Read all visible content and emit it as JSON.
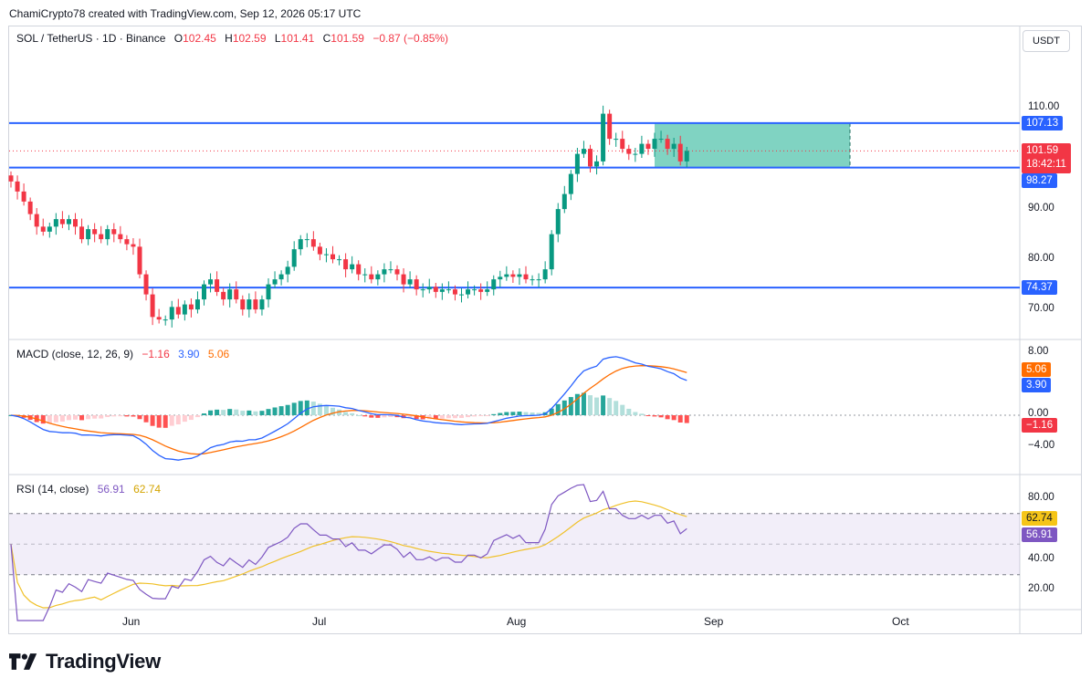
{
  "header": {
    "credit": "ChamiCrypto78 created with TradingView.com, Sep 12, 2026 05:17 UTC"
  },
  "main_legend": {
    "symbol": "SOL / TetherUS · 1D · Binance",
    "open_label": "O",
    "open": "102.45",
    "high_label": "H",
    "high": "102.59",
    "low_label": "L",
    "low": "101.41",
    "close_label": "C",
    "close": "101.59",
    "change": "−0.87 (−0.85%)"
  },
  "unit_button": "USDT",
  "price_tags": {
    "resistance": "107.13",
    "last_price": "101.59",
    "countdown": "18:42:11",
    "support": "98.27",
    "lower_support": "74.37"
  },
  "macd_legend": {
    "name": "MACD (close, 12, 26, 9)",
    "histogram": "−1.16",
    "macd": "3.90",
    "signal": "5.06"
  },
  "rsi_legend": {
    "name": "RSI (14, close)",
    "rsi": "56.91",
    "rsi_ma": "62.74"
  },
  "colors": {
    "up": "#089981",
    "down": "#f23645",
    "level_line": "#2962ff",
    "macd_line": "#2962ff",
    "signal_line": "#ff6d00",
    "rsi_line": "#7e57c2",
    "rsi_ma_line": "#f0c12a",
    "box_fill": "#2cb59a"
  },
  "branding": {
    "logo_text": "TradingView"
  },
  "chart_data": [
    {
      "type": "candlestick",
      "title": "SOL / TetherUS · 1D · Binance",
      "y_axis_ticks": [
        "110.00",
        "90.00",
        "80.00",
        "70.00"
      ],
      "x_axis_ticks": [
        "Jun",
        "Jul",
        "Aug",
        "Sep",
        "Oct"
      ],
      "ylim": [
        66.5,
        120
      ],
      "horizontal_levels": [
        107.13,
        98.27,
        74.37
      ],
      "last_price": 101.59,
      "range_box": {
        "top": 107.13,
        "bottom": 98.27
      },
      "close_approx": [
        95.5,
        93.5,
        91.5,
        89,
        86.5,
        85.5,
        86.5,
        88,
        87,
        88,
        86.5,
        84,
        86,
        85,
        84,
        86,
        85,
        84,
        83,
        82.5,
        77,
        73,
        68.5,
        68,
        68,
        70.5,
        69,
        71,
        70,
        72,
        75,
        76,
        73.5,
        72,
        74,
        72,
        70,
        72,
        70,
        72,
        75,
        76,
        77,
        78.5,
        82,
        84,
        84,
        82.5,
        81,
        81,
        80,
        80,
        78,
        79,
        77,
        77,
        76,
        77,
        78,
        78,
        77,
        75,
        76,
        74,
        74,
        74.5,
        73.5,
        74,
        74,
        73,
        73,
        74,
        74,
        73.5,
        74,
        76,
        76.5,
        77,
        76.5,
        77,
        76,
        76,
        76,
        78,
        85,
        90,
        93,
        97,
        101,
        102,
        98.5,
        99.5,
        109,
        104,
        104,
        102,
        101,
        101,
        103,
        102,
        104,
        104,
        102,
        103,
        99.5,
        101.59
      ],
      "macd": {
        "histogram_last": -1.16,
        "macd_last": 3.9,
        "signal_last": 5.06,
        "y_axis_ticks": [
          "8.00",
          "0.00",
          "−4.00"
        ]
      },
      "rsi": {
        "rsi_last": 56.91,
        "rsi_ma_last": 62.74,
        "bands": [
          70,
          30
        ],
        "y_axis_ticks": [
          "80.00",
          "40.00",
          "20.00"
        ]
      }
    }
  ]
}
